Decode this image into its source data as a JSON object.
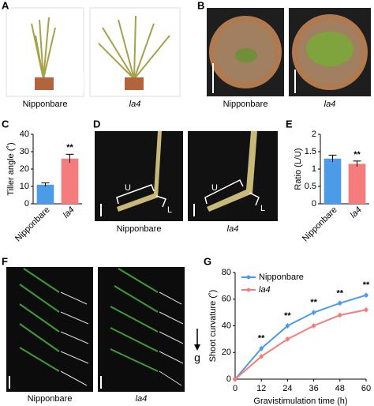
{
  "panel_labels": [
    "A",
    "B",
    "C",
    "D",
    "E",
    "F",
    "G"
  ],
  "photos": {
    "A": [
      "Nipponbare",
      "la4"
    ],
    "B": [
      "Nipponbare",
      "la4"
    ],
    "D": {
      "captions": [
        "Nipponbare",
        "la4"
      ],
      "marks": [
        "U",
        "L"
      ]
    },
    "F": {
      "captions": [
        "Nipponbare",
        "la4"
      ],
      "arrow": "g"
    }
  },
  "chart_data": [
    {
      "type": "bar",
      "ylabel": "Tiller angle (˚)",
      "categories": [
        "Nipponbare",
        "la4"
      ],
      "values": [
        11,
        26
      ],
      "errors": [
        1,
        2.5
      ],
      "colors": [
        "#4c9be8",
        "#f47c7c"
      ],
      "significance": [
        null,
        "**"
      ],
      "ylim": [
        0,
        40
      ],
      "yticks": [
        0,
        10,
        20,
        30,
        40
      ]
    },
    {
      "type": "bar",
      "ylabel": "Ratio (L/U)",
      "categories": [
        "Nipponbare",
        "la4"
      ],
      "values": [
        1.3,
        1.15
      ],
      "errors": [
        0.1,
        0.08
      ],
      "colors": [
        "#4c9be8",
        "#f47c7c"
      ],
      "significance": [
        null,
        "**"
      ],
      "ylim": [
        0,
        2
      ],
      "yticks": [
        0,
        0.5,
        1,
        1.5,
        2
      ]
    },
    {
      "type": "line",
      "xlabel": "Gravistimulation time (h)",
      "ylabel": "Shoot curvature (˚)",
      "x": [
        0,
        12,
        24,
        36,
        48,
        60
      ],
      "series": [
        {
          "name": "Nipponbare",
          "color": "#4c9be8",
          "values": [
            0,
            23,
            40,
            50,
            57,
            63
          ],
          "errors": [
            0,
            2,
            2,
            2,
            2,
            2
          ]
        },
        {
          "name": "la4",
          "color": "#f47c7c",
          "values": [
            0,
            17,
            30,
            40,
            48,
            52
          ],
          "errors": [
            0,
            2,
            2,
            2,
            2,
            2
          ]
        }
      ],
      "significance": [
        null,
        "**",
        "**",
        "**",
        "**",
        "**"
      ],
      "xlim": [
        0,
        60
      ],
      "xticks": [
        0,
        12,
        24,
        36,
        48,
        60
      ],
      "ylim": [
        0,
        80
      ],
      "yticks": [
        0,
        20,
        40,
        60,
        80
      ]
    }
  ]
}
